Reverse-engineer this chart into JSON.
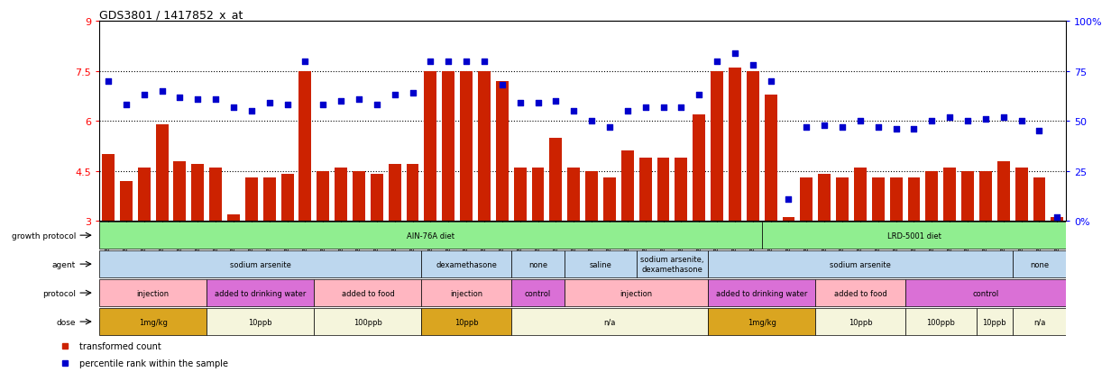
{
  "title": "GDS3801 / 1417852_x_at",
  "samples": [
    "GSM279240",
    "GSM279245",
    "GSM279248",
    "GSM279250",
    "GSM279253",
    "GSM279234",
    "GSM279262",
    "GSM279269",
    "GSM279272",
    "GSM279231",
    "GSM279243",
    "GSM279261",
    "GSM279263",
    "GSM279230",
    "GSM279249",
    "GSM279258",
    "GSM279265",
    "GSM279273",
    "GSM279233",
    "GSM279236",
    "GSM279239",
    "GSM279247",
    "GSM279252",
    "GSM279232",
    "GSM279235",
    "GSM279264",
    "GSM279270",
    "GSM279275",
    "GSM279221",
    "GSM279260",
    "GSM279267",
    "GSM279271",
    "GSM279274",
    "GSM279238",
    "GSM279241",
    "GSM279251",
    "GSM279255",
    "GSM279268",
    "GSM279222",
    "GSM279246",
    "GSM279259",
    "GSM279266",
    "GSM279227",
    "GSM279254",
    "GSM279257",
    "GSM279223",
    "GSM279228",
    "GSM279237",
    "GSM279242",
    "GSM279244",
    "GSM279224",
    "GSM279225",
    "GSM279229",
    "GSM279256"
  ],
  "bar_values": [
    5.0,
    4.2,
    4.6,
    5.9,
    4.8,
    4.7,
    4.6,
    3.2,
    4.3,
    4.3,
    4.4,
    7.5,
    4.5,
    4.6,
    4.5,
    4.4,
    4.7,
    4.7,
    7.5,
    7.5,
    7.5,
    7.5,
    7.2,
    4.6,
    4.6,
    5.5,
    4.6,
    4.5,
    4.3,
    5.1,
    4.9,
    4.9,
    4.9,
    6.2,
    7.5,
    7.6,
    7.5,
    6.8,
    3.1,
    4.3,
    4.4,
    4.3,
    4.6,
    4.3,
    4.3,
    4.3,
    4.5,
    4.6,
    4.5,
    4.5,
    4.8,
    4.6,
    4.3,
    3.1
  ],
  "percentile_values": [
    70,
    58,
    63,
    65,
    62,
    61,
    61,
    57,
    55,
    59,
    58,
    80,
    58,
    60,
    61,
    58,
    63,
    64,
    80,
    80,
    80,
    80,
    68,
    59,
    59,
    60,
    55,
    50,
    47,
    55,
    57,
    57,
    57,
    63,
    80,
    84,
    78,
    70,
    11,
    47,
    48,
    47,
    50,
    47,
    46,
    46,
    50,
    52,
    50,
    51,
    52,
    50,
    45,
    2
  ],
  "ylim": [
    3,
    9
  ],
  "yticks": [
    3,
    4.5,
    6,
    7.5,
    9
  ],
  "ytick_labels": [
    "3",
    "4.5",
    "6",
    "7.5",
    "9"
  ],
  "right_yticks": [
    0,
    25,
    50,
    75,
    100
  ],
  "right_ytick_labels": [
    "0%",
    "25",
    "50",
    "75",
    "100%"
  ],
  "bar_color": "#cc2200",
  "dot_color": "#0000cc",
  "hline_values": [
    4.5,
    6.0,
    7.5
  ],
  "annotation_rows": [
    {
      "label": "growth protocol",
      "segments": [
        {
          "text": "AIN-76A diet",
          "span": [
            0,
            37
          ],
          "color": "#90EE90"
        },
        {
          "text": "LRD-5001 diet",
          "span": [
            37,
            54
          ],
          "color": "#90EE90"
        }
      ]
    },
    {
      "label": "agent",
      "segments": [
        {
          "text": "sodium arsenite",
          "span": [
            0,
            18
          ],
          "color": "#BDD7EE"
        },
        {
          "text": "dexamethasone",
          "span": [
            18,
            23
          ],
          "color": "#BDD7EE"
        },
        {
          "text": "none",
          "span": [
            23,
            26
          ],
          "color": "#BDD7EE"
        },
        {
          "text": "saline",
          "span": [
            26,
            30
          ],
          "color": "#BDD7EE"
        },
        {
          "text": "sodium arsenite,\ndexamethasone",
          "span": [
            30,
            34
          ],
          "color": "#BDD7EE"
        },
        {
          "text": "sodium arsenite",
          "span": [
            34,
            51
          ],
          "color": "#BDD7EE"
        },
        {
          "text": "none",
          "span": [
            51,
            54
          ],
          "color": "#BDD7EE"
        }
      ]
    },
    {
      "label": "protocol",
      "segments": [
        {
          "text": "injection",
          "span": [
            0,
            6
          ],
          "color": "#FFB6C1"
        },
        {
          "text": "added to drinking water",
          "span": [
            6,
            12
          ],
          "color": "#DA70D6"
        },
        {
          "text": "added to food",
          "span": [
            12,
            18
          ],
          "color": "#FFB6C1"
        },
        {
          "text": "injection",
          "span": [
            18,
            23
          ],
          "color": "#FFB6C1"
        },
        {
          "text": "control",
          "span": [
            23,
            26
          ],
          "color": "#DA70D6"
        },
        {
          "text": "injection",
          "span": [
            26,
            34
          ],
          "color": "#FFB6C1"
        },
        {
          "text": "added to drinking water",
          "span": [
            34,
            40
          ],
          "color": "#DA70D6"
        },
        {
          "text": "added to food",
          "span": [
            40,
            45
          ],
          "color": "#FFB6C1"
        },
        {
          "text": "control",
          "span": [
            45,
            54
          ],
          "color": "#DA70D6"
        }
      ]
    },
    {
      "label": "dose",
      "segments": [
        {
          "text": "1mg/kg",
          "span": [
            0,
            6
          ],
          "color": "#DAA520"
        },
        {
          "text": "10ppb",
          "span": [
            6,
            12
          ],
          "color": "#F5F5DC"
        },
        {
          "text": "100ppb",
          "span": [
            12,
            18
          ],
          "color": "#F5F5DC"
        },
        {
          "text": "10ppb",
          "span": [
            18,
            23
          ],
          "color": "#DAA520"
        },
        {
          "text": "n/a",
          "span": [
            23,
            34
          ],
          "color": "#F5F5DC"
        },
        {
          "text": "1mg/kg",
          "span": [
            34,
            40
          ],
          "color": "#DAA520"
        },
        {
          "text": "10ppb",
          "span": [
            40,
            45
          ],
          "color": "#F5F5DC"
        },
        {
          "text": "100ppb",
          "span": [
            45,
            49
          ],
          "color": "#F5F5DC"
        },
        {
          "text": "10ppb",
          "span": [
            49,
            51
          ],
          "color": "#F5F5DC"
        },
        {
          "text": "n/a",
          "span": [
            51,
            54
          ],
          "color": "#F5F5DC"
        }
      ]
    }
  ],
  "legend_items": [
    {
      "label": "transformed count",
      "color": "#cc2200"
    },
    {
      "label": "percentile rank within the sample",
      "color": "#0000cc"
    }
  ]
}
